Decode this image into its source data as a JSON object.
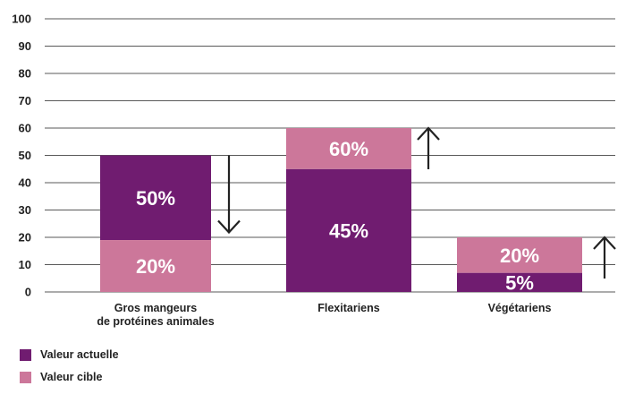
{
  "chart_data": {
    "type": "bar",
    "stacked": true,
    "categories": [
      [
        "Gros mangeurs",
        "de protéines animales"
      ],
      [
        "Flexitariens"
      ],
      [
        "Végétariens"
      ]
    ],
    "series": [
      {
        "name": "Valeur actuelle",
        "color": "#701c70",
        "values": [
          50,
          45,
          5
        ],
        "segment_ranges": [
          [
            19,
            50
          ],
          [
            0,
            45
          ],
          [
            0,
            7
          ]
        ],
        "labels": [
          "50%",
          "45%",
          "5%"
        ]
      },
      {
        "name": "Valeur cible",
        "color": "#cc779a",
        "values": [
          20,
          60,
          20
        ],
        "segment_ranges": [
          [
            0,
            19
          ],
          [
            45,
            60
          ],
          [
            7,
            20
          ]
        ],
        "labels": [
          "20%",
          "60%",
          "20%"
        ]
      }
    ],
    "trend_arrows": [
      "down",
      "up",
      "up"
    ],
    "yticks": [
      0,
      10,
      20,
      30,
      40,
      50,
      60,
      70,
      80,
      90,
      100
    ],
    "ylim": [
      0,
      100
    ],
    "grid": true,
    "legend_position": "bottom-left",
    "title": "",
    "xlabel": "",
    "ylabel": ""
  }
}
